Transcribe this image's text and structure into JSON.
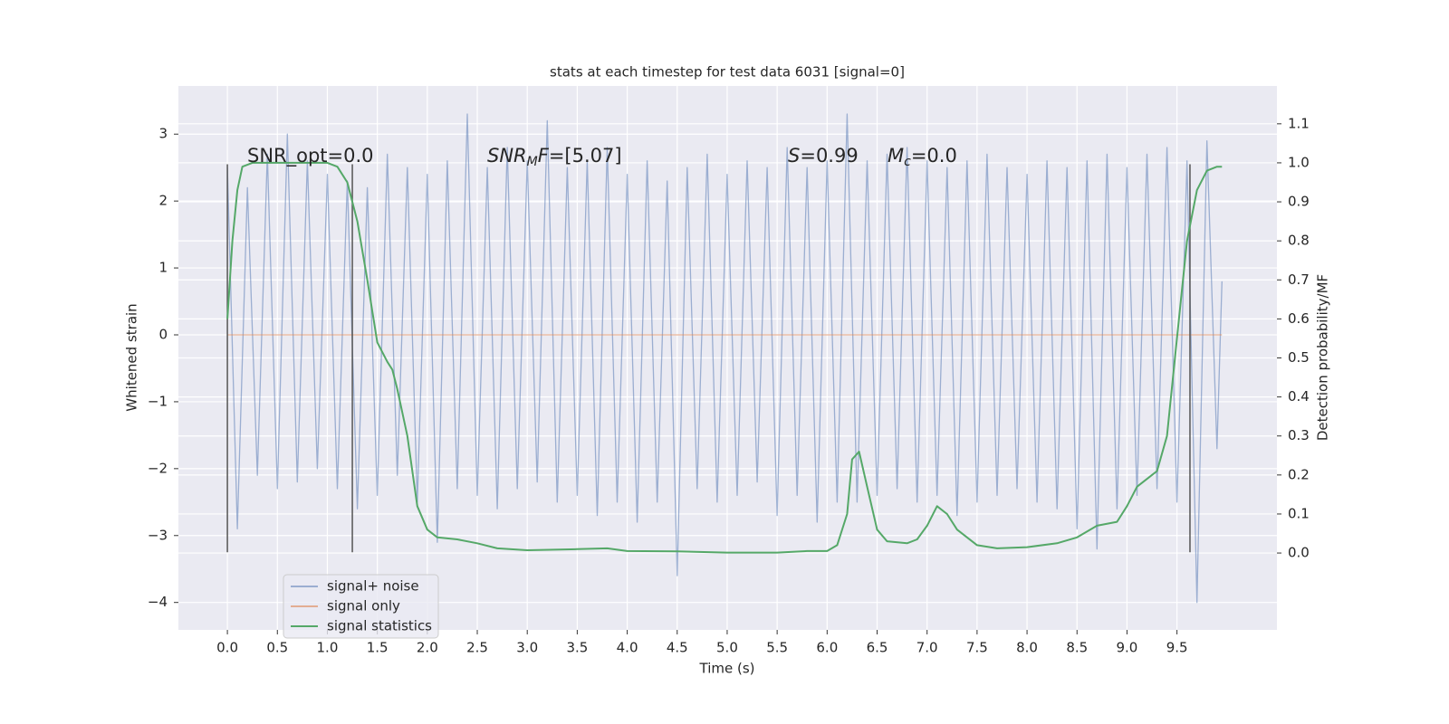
{
  "chart_data": {
    "type": "line",
    "title": "stats at each timestep for test data 6031 [signal=0]",
    "x_label": "Time (s)",
    "y_label": "Whitened strain",
    "y2_label": "Detection probability/MF",
    "annotations": [
      [
        "SNR_opt=0.0"
      ],
      [
        "SNR",
        "M",
        "F",
        "=[5.07]"
      ],
      [
        "S",
        "=0.99"
      ],
      [
        "M",
        "c",
        "=0.0"
      ]
    ],
    "xlim": [
      -0.49,
      10.5
    ],
    "ylim": [
      -4.41,
      3.72
    ],
    "y2lim": [
      -0.197,
      1.197
    ],
    "xticks": [
      {
        "value": 0,
        "label": "0.0"
      },
      0.5,
      {
        "value": 1,
        "label": "1.0"
      },
      1.5,
      {
        "value": 2,
        "label": "2.0"
      },
      2.5,
      {
        "value": 3,
        "label": "3.0"
      },
      3.5,
      {
        "value": 4,
        "label": "4.0"
      },
      4.5,
      {
        "value": 5,
        "label": "5.0"
      },
      5.5,
      {
        "value": 6,
        "label": "6.0"
      },
      6.5,
      {
        "value": 7,
        "label": "7.0"
      },
      7.5,
      {
        "value": 8,
        "label": "8.0"
      },
      8.5,
      {
        "value": 9,
        "label": "9.0"
      },
      9.5
    ],
    "yticks": [
      {
        "value": -4,
        "label": "−4"
      },
      {
        "value": -3,
        "label": "−3"
      },
      {
        "value": -2,
        "label": "−2"
      },
      {
        "value": -1,
        "label": "−1"
      },
      0,
      1,
      2,
      3
    ],
    "y2ticks": [
      {
        "value": 0,
        "label": "0.0"
      },
      0.1,
      0.2,
      0.3,
      0.4,
      0.5,
      0.6,
      0.7,
      0.8,
      0.9,
      {
        "value": 1,
        "label": "1.0"
      },
      1.1
    ],
    "grid": true,
    "legend": "lower left",
    "background": "#eaeaf2",
    "vlines": {
      "x": [
        0,
        1.25,
        9.63
      ],
      "ymin": -3.25,
      "ymax": 2.55,
      "color": "#555555"
    },
    "series": [
      {
        "name": "signal+ noise",
        "color": "#4c72b0",
        "opacity": 0.5,
        "x": [
          0,
          0.1,
          0.2,
          0.3,
          0.4,
          0.5,
          0.6,
          0.7,
          0.8,
          0.9,
          1,
          1.1,
          1.2,
          1.3,
          1.4,
          1.5,
          1.6,
          1.7,
          1.8,
          1.9,
          2,
          2.1,
          2.2,
          2.3,
          2.4,
          2.5,
          2.6,
          2.7,
          2.8,
          2.9,
          3,
          3.1,
          3.2,
          3.3,
          3.4,
          3.5,
          3.6,
          3.7,
          3.8,
          3.9,
          4,
          4.1,
          4.2,
          4.3,
          4.4,
          4.5,
          4.6,
          4.7,
          4.8,
          4.9,
          5,
          5.1,
          5.2,
          5.3,
          5.4,
          5.5,
          5.6,
          5.7,
          5.8,
          5.9,
          6,
          6.1,
          6.2,
          6.3,
          6.4,
          6.5,
          6.6,
          6.7,
          6.8,
          6.9,
          7,
          7.1,
          7.2,
          7.3,
          7.4,
          7.5,
          7.6,
          7.7,
          7.8,
          7.9,
          8,
          8.1,
          8.2,
          8.3,
          8.4,
          8.5,
          8.6,
          8.7,
          8.8,
          8.9,
          9,
          9.1,
          9.2,
          9.3,
          9.4,
          9.5,
          9.6,
          9.7,
          9.8,
          9.9,
          9.95
        ],
        "values": [
          2.5,
          -2.9,
          2.2,
          -2.1,
          2.7,
          -2.3,
          3.0,
          -2.2,
          2.6,
          -2.0,
          2.4,
          -2.3,
          2.3,
          -2.6,
          2.2,
          -2.4,
          2.7,
          -2.1,
          2.5,
          -2.5,
          2.4,
          -3.1,
          2.6,
          -2.3,
          3.3,
          -2.4,
          2.5,
          -2.6,
          2.8,
          -2.3,
          2.6,
          -2.2,
          3.2,
          -2.5,
          2.5,
          -2.4,
          2.6,
          -2.7,
          2.8,
          -2.5,
          2.4,
          -2.8,
          2.6,
          -2.5,
          2.3,
          -3.6,
          2.5,
          -2.3,
          2.7,
          -2.5,
          2.4,
          -2.4,
          2.6,
          -2.2,
          2.5,
          -2.7,
          2.8,
          -2.4,
          2.5,
          -2.8,
          2.6,
          -2.5,
          3.3,
          -2.5,
          2.6,
          -2.4,
          2.7,
          -2.3,
          2.8,
          -2.5,
          2.6,
          -2.4,
          2.5,
          -2.7,
          2.6,
          -2.5,
          2.7,
          -2.4,
          2.5,
          -2.3,
          2.4,
          -2.5,
          2.6,
          -2.6,
          2.5,
          -2.9,
          2.6,
          -3.2,
          2.7,
          -2.6,
          2.5,
          -2.4,
          2.7,
          -2.3,
          2.8,
          -2.5,
          2.6,
          -4.0,
          2.9,
          -1.7,
          0.8
        ]
      },
      {
        "name": "signal only",
        "color": "#dd8452",
        "opacity": 0.6,
        "x": [
          0,
          9.95
        ],
        "values": [
          0,
          0
        ]
      },
      {
        "name": "signal statistics",
        "color": "#55a868",
        "axis": "y2",
        "x": [
          0,
          0.05,
          0.1,
          0.15,
          0.25,
          0.5,
          1,
          1.1,
          1.2,
          1.3,
          1.4,
          1.5,
          1.6,
          1.65,
          1.7,
          1.8,
          1.9,
          2,
          2.1,
          2.3,
          2.5,
          2.7,
          3,
          3.5,
          3.8,
          4,
          4.5,
          5,
          5.5,
          5.8,
          6,
          6.1,
          6.2,
          6.25,
          6.32,
          6.4,
          6.5,
          6.6,
          6.8,
          6.9,
          7,
          7.1,
          7.2,
          7.3,
          7.5,
          7.7,
          8,
          8.3,
          8.5,
          8.7,
          8.9,
          9,
          9.1,
          9.2,
          9.3,
          9.4,
          9.5,
          9.6,
          9.7,
          9.8,
          9.9,
          9.95
        ],
        "values": [
          0.6,
          0.8,
          0.93,
          0.99,
          1,
          1,
          1,
          0.99,
          0.95,
          0.85,
          0.7,
          0.54,
          0.49,
          0.47,
          0.42,
          0.3,
          0.12,
          0.06,
          0.04,
          0.035,
          0.025,
          0.012,
          0.007,
          0.01,
          0.012,
          0.005,
          0.004,
          0.001,
          0.001,
          0.005,
          0.005,
          0.02,
          0.1,
          0.24,
          0.26,
          0.17,
          0.06,
          0.03,
          0.025,
          0.035,
          0.07,
          0.12,
          0.1,
          0.06,
          0.02,
          0.012,
          0.015,
          0.025,
          0.04,
          0.07,
          0.08,
          0.12,
          0.17,
          0.19,
          0.21,
          0.3,
          0.55,
          0.8,
          0.93,
          0.98,
          0.99,
          0.99
        ]
      }
    ]
  }
}
